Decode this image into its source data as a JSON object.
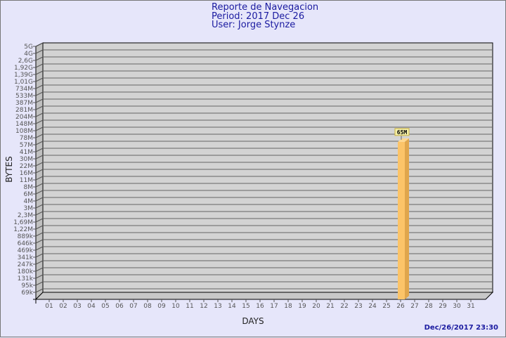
{
  "header": {
    "title": "Reporte de Navegacion",
    "period": "Period: 2017 Dec 26",
    "user": "User: Jorge Stynze"
  },
  "footer": {
    "timestamp": "Dec/26/2017 23:30"
  },
  "colors": {
    "background": "#e6e6fa",
    "plot": "#d3d3d3",
    "bar_front": "#fcc468",
    "bar_side": "#e0a64c",
    "title": "#1a1aa0",
    "label_box": "#f5f0a8"
  },
  "chart_data": {
    "type": "bar",
    "style": "3d",
    "xlabel": "DAYS",
    "ylabel": "BYTES",
    "yscale": "log",
    "grid": true,
    "y_ticks": [
      "5G",
      "4G",
      "2,6G",
      "1,92G",
      "1,39G",
      "1,01G",
      "734M",
      "533M",
      "387M",
      "281M",
      "204M",
      "148M",
      "108M",
      "78M",
      "57M",
      "41M",
      "30M",
      "22M",
      "16M",
      "11M",
      "8M",
      "6M",
      "4M",
      "3M",
      "2,3M",
      "1,69M",
      "1,22M",
      "889k",
      "646k",
      "469k",
      "341k",
      "247k",
      "180k",
      "131k",
      "95k",
      "69k"
    ],
    "categories": [
      "01",
      "02",
      "03",
      "04",
      "05",
      "06",
      "07",
      "08",
      "09",
      "10",
      "11",
      "12",
      "13",
      "14",
      "15",
      "16",
      "17",
      "18",
      "19",
      "20",
      "21",
      "22",
      "23",
      "24",
      "25",
      "26",
      "27",
      "28",
      "29",
      "30",
      "31"
    ],
    "values": [
      0,
      0,
      0,
      0,
      0,
      0,
      0,
      0,
      0,
      0,
      0,
      0,
      0,
      0,
      0,
      0,
      0,
      0,
      0,
      0,
      0,
      0,
      0,
      0,
      0,
      65000000,
      0,
      0,
      0,
      0,
      0
    ],
    "data_labels": {
      "26": "65M"
    }
  }
}
